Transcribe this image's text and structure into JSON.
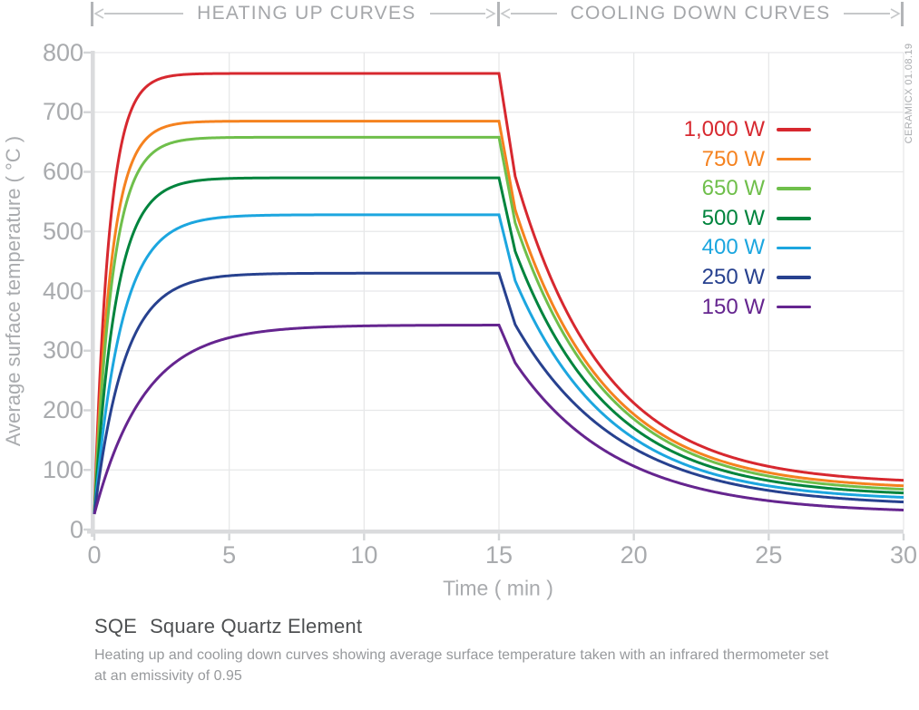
{
  "header": {
    "heating_label": "HEATING UP CURVES",
    "cooling_label": "COOLING DOWN CURVES"
  },
  "watermark": "CERAMICX 01.08.19",
  "axes": {
    "y_title": "Average surface temperature ( °C )",
    "x_title": "Time ( min )",
    "y_ticks": [
      0,
      100,
      200,
      300,
      400,
      500,
      600,
      700,
      800
    ],
    "x_ticks": [
      0,
      5,
      10,
      15,
      20,
      25,
      30
    ]
  },
  "footer": {
    "product_code": "SQE",
    "product_name": "Square Quartz Element",
    "subtitle_line1": "Heating up and cooling down curves showing average surface temperature taken with an infrared thermometer set",
    "subtitle_line2": "at an emissivity of 0.95"
  },
  "colors": {
    "grid": "#e7e8e9",
    "axis": "#dadbdd",
    "tick": "#d4d6d8",
    "label_gray": "#a9abae",
    "header_gray": "#a5a7aa",
    "title_dark": "#4e5052",
    "subtitle_gray": "#97999c"
  },
  "chart_data": {
    "type": "line",
    "title": "SQE Square Quartz Element heating up and cooling down curves",
    "xlabel": "Time ( min )",
    "ylabel": "Average surface temperature ( °C )",
    "xlim": [
      0,
      30
    ],
    "ylim": [
      0,
      800
    ],
    "grid": true,
    "legend_position": "top-right",
    "power_on_minutes": 15,
    "series": [
      {
        "label": "1,000 W",
        "color": "#d7282f",
        "readings_t_min_temp_c": [
          [
            0,
            26
          ],
          [
            1,
            645
          ],
          [
            2,
            746
          ],
          [
            5,
            765
          ],
          [
            10,
            765
          ],
          [
            15,
            765
          ],
          [
            16,
            534
          ],
          [
            20,
            212
          ],
          [
            25,
            106
          ],
          [
            30,
            83
          ]
        ],
        "model": {
          "start_temp_c": 26,
          "plateau_temp_c": 765,
          "heat_tau_min": 0.55,
          "cool_floor_c": 76,
          "cool_knee_frac": 0.75,
          "cool_knee_min": 0.6,
          "cool_tau_min": 3.3
        }
      },
      {
        "label": "750 W",
        "color": "#f5821f",
        "readings_t_min_temp_c": [
          [
            0,
            26
          ],
          [
            1,
            554
          ],
          [
            2,
            659
          ],
          [
            5,
            685
          ],
          [
            10,
            685
          ],
          [
            15,
            685
          ],
          [
            16,
            484
          ],
          [
            20,
            193
          ],
          [
            25,
            95
          ],
          [
            30,
            73
          ]
        ],
        "model": {
          "start_temp_c": 26,
          "plateau_temp_c": 685,
          "heat_tau_min": 0.62,
          "cool_floor_c": 67,
          "cool_knee_frac": 0.76,
          "cool_knee_min": 0.6,
          "cool_tau_min": 3.35
        }
      },
      {
        "label": "650 W",
        "color": "#6fbf4b",
        "readings_t_min_temp_c": [
          [
            0,
            26
          ],
          [
            1,
            513
          ],
          [
            2,
            625
          ],
          [
            5,
            658
          ],
          [
            10,
            658
          ],
          [
            15,
            658
          ],
          [
            16,
            464
          ],
          [
            20,
            185
          ],
          [
            25,
            89
          ],
          [
            30,
            67
          ]
        ],
        "model": {
          "start_temp_c": 26,
          "plateau_temp_c": 658,
          "heat_tau_min": 0.68,
          "cool_floor_c": 61,
          "cool_knee_frac": 0.76,
          "cool_knee_min": 0.6,
          "cool_tau_min": 3.4
        }
      },
      {
        "label": "500 W",
        "color": "#00843d",
        "readings_t_min_temp_c": [
          [
            0,
            26
          ],
          [
            1,
            428
          ],
          [
            2,
            544
          ],
          [
            5,
            589
          ],
          [
            10,
            590
          ],
          [
            15,
            590
          ],
          [
            16,
            422
          ],
          [
            20,
            170
          ],
          [
            25,
            82
          ],
          [
            30,
            61
          ]
        ],
        "model": {
          "start_temp_c": 26,
          "plateau_temp_c": 590,
          "heat_tau_min": 0.8,
          "cool_floor_c": 55,
          "cool_knee_frac": 0.77,
          "cool_knee_min": 0.6,
          "cool_tau_min": 3.45
        }
      },
      {
        "label": "400 W",
        "color": "#1ca6df",
        "readings_t_min_temp_c": [
          [
            0,
            26
          ],
          [
            1,
            343
          ],
          [
            2,
            460
          ],
          [
            5,
            525
          ],
          [
            10,
            528
          ],
          [
            15,
            528
          ],
          [
            16,
            378
          ],
          [
            20,
            153
          ],
          [
            25,
            73
          ],
          [
            30,
            54
          ]
        ],
        "model": {
          "start_temp_c": 26,
          "plateau_temp_c": 528,
          "heat_tau_min": 1.0,
          "cool_floor_c": 48,
          "cool_knee_frac": 0.77,
          "cool_knee_min": 0.6,
          "cool_tau_min": 3.5
        }
      },
      {
        "label": "250 W",
        "color": "#27418f",
        "readings_t_min_temp_c": [
          [
            0,
            26
          ],
          [
            1,
            267
          ],
          [
            2,
            364
          ],
          [
            5,
            426
          ],
          [
            10,
            430
          ],
          [
            15,
            430
          ],
          [
            16,
            314
          ],
          [
            20,
            136
          ],
          [
            25,
            66
          ],
          [
            30,
            46
          ]
        ],
        "model": {
          "start_temp_c": 26,
          "plateau_temp_c": 430,
          "heat_tau_min": 1.1,
          "cool_floor_c": 39,
          "cool_knee_frac": 0.78,
          "cool_knee_min": 0.6,
          "cool_tau_min": 3.85
        }
      },
      {
        "label": "150 W",
        "color": "#65258f",
        "readings_t_min_temp_c": [
          [
            0,
            26
          ],
          [
            1,
            158
          ],
          [
            2,
            235
          ],
          [
            5,
            322
          ],
          [
            10,
            342
          ],
          [
            15,
            343
          ],
          [
            16,
            255
          ],
          [
            20,
            107
          ],
          [
            25,
            48
          ],
          [
            30,
            33
          ]
        ],
        "model": {
          "start_temp_c": 26,
          "plateau_temp_c": 343,
          "heat_tau_min": 1.85,
          "cool_floor_c": 27,
          "cool_knee_frac": 0.8,
          "cool_knee_min": 0.6,
          "cool_tau_min": 3.8
        }
      }
    ]
  }
}
